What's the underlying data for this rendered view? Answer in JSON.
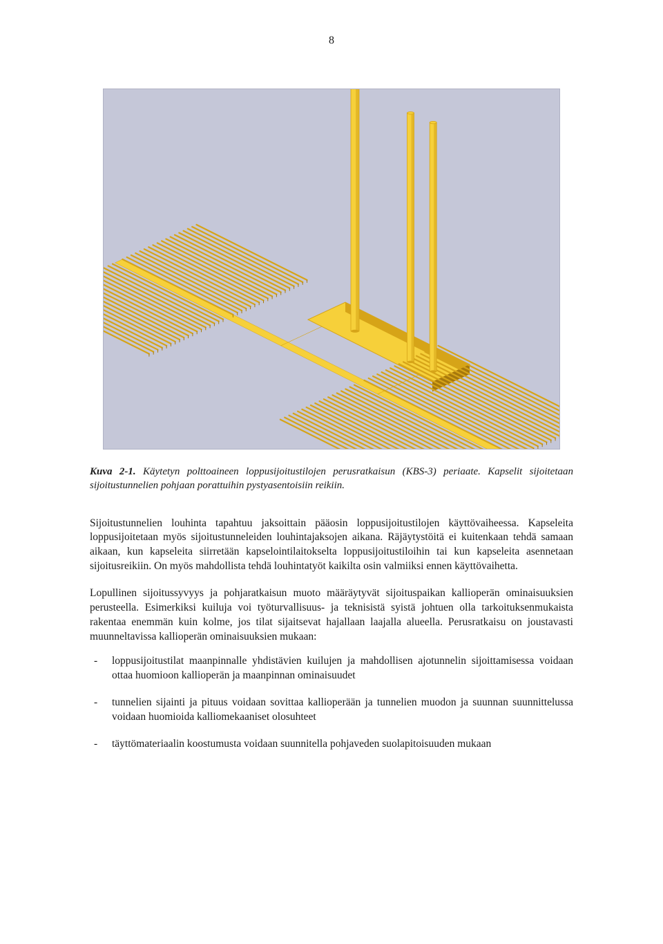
{
  "page_number": "8",
  "figure": {
    "background": "#c5c7d8",
    "structure_color_fill": "#f6d03a",
    "structure_color_shadow": "#d6a418",
    "structure_color_dark": "#a6780c",
    "shaft_count": 3,
    "panels": 4,
    "lines_per_panel": 18
  },
  "caption": {
    "label": "Kuva 2-1.",
    "text": "Käytetyn polttoaineen loppusijoitustilojen perusratkaisun (KBS-3) periaate. Kapselit sijoitetaan sijoitustunnelien pohjaan porattuihin pystyasentoisiin reikiin."
  },
  "paragraphs": {
    "p1": "Sijoitustunnelien louhinta tapahtuu jaksoittain pääosin loppusijoitustilojen käyttövaiheessa. Kapseleita loppusijoitetaan myös sijoitustunneleiden louhintajaksojen aikana. Räjäytystöitä ei kuitenkaan tehdä samaan aikaan, kun kapseleita siirretään kapselointilaitokselta loppusijoitustiloihin tai kun kapseleita asennetaan sijoitusreikiin. On myös mahdollista tehdä louhintatyöt kaikilta osin valmiiksi ennen käyttövaihetta.",
    "p2": "Lopullinen sijoitussyvyys ja pohjaratkaisun muoto määräytyvät sijoituspaikan kallioperän ominaisuuksien perusteella. Esimerkiksi kuiluja voi työturvallisuus- ja teknisistä syistä johtuen olla tarkoituksenmukaista rakentaa enemmän kuin kolme, jos tilat sijaitsevat hajallaan laajalla alueella. Perusratkaisu on joustavasti muunneltavissa kallioperän ominaisuuksien mukaan:"
  },
  "bullets": [
    "loppusijoitustilat maanpinnalle yhdistävien kuilujen ja mahdollisen ajotunnelin sijoittamisessa voidaan ottaa huomioon kallioperän ja maanpinnan ominaisuudet",
    "tunnelien sijainti ja pituus voidaan sovittaa kallioperään ja tunnelien muodon ja suunnan suunnittelussa voidaan huomioida kalliomekaaniset olosuhteet",
    "täyttömateriaalin koostumusta voidaan suunnitella pohjaveden suolapitoisuuden mukaan"
  ]
}
